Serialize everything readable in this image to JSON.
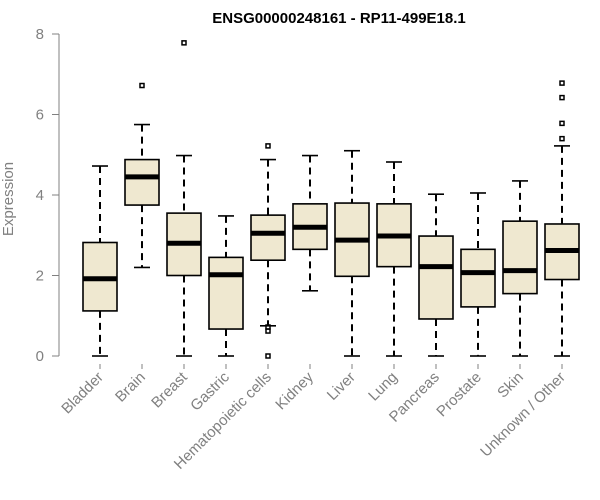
{
  "chart_data": {
    "type": "boxplot",
    "title": "ENSG00000248161 - RP11-499E18.1",
    "xlabel": "",
    "ylabel": "Expression",
    "ylim": [
      0,
      8
    ],
    "yticks": [
      0,
      2,
      4,
      6,
      8
    ],
    "box_color": "#efe8d0",
    "categories": [
      "Bladder",
      "Brain",
      "Breast",
      "Gastric",
      "Hematopoietic cells",
      "Kidney",
      "Liver",
      "Lung",
      "Pancreas",
      "Prostate",
      "Skin",
      "Unknown / Other"
    ],
    "boxes": [
      {
        "min": 0.0,
        "q1": 1.12,
        "median": 1.92,
        "q3": 2.82,
        "max": 4.72,
        "outliers": []
      },
      {
        "min": 2.2,
        "q1": 3.75,
        "median": 4.45,
        "q3": 4.88,
        "max": 5.75,
        "outliers": [
          6.72
        ]
      },
      {
        "min": 0.0,
        "q1": 2.0,
        "median": 2.8,
        "q3": 3.55,
        "max": 4.98,
        "outliers": [
          7.78
        ]
      },
      {
        "min": 0.0,
        "q1": 0.67,
        "median": 2.02,
        "q3": 2.45,
        "max": 3.48,
        "outliers": []
      },
      {
        "min": 0.75,
        "q1": 2.38,
        "median": 3.05,
        "q3": 3.5,
        "max": 4.88,
        "outliers": [
          5.22,
          0.72,
          0.62,
          0.0
        ]
      },
      {
        "min": 1.62,
        "q1": 2.65,
        "median": 3.2,
        "q3": 3.78,
        "max": 4.98,
        "outliers": []
      },
      {
        "min": 0.0,
        "q1": 1.98,
        "median": 2.88,
        "q3": 3.8,
        "max": 5.1,
        "outliers": []
      },
      {
        "min": 0.0,
        "q1": 2.22,
        "median": 2.98,
        "q3": 3.78,
        "max": 4.82,
        "outliers": []
      },
      {
        "min": 0.0,
        "q1": 0.92,
        "median": 2.22,
        "q3": 2.98,
        "max": 4.02,
        "outliers": []
      },
      {
        "min": 0.0,
        "q1": 1.22,
        "median": 2.07,
        "q3": 2.65,
        "max": 4.05,
        "outliers": []
      },
      {
        "min": 0.0,
        "q1": 1.55,
        "median": 2.12,
        "q3": 3.35,
        "max": 4.35,
        "outliers": []
      },
      {
        "min": 0.0,
        "q1": 1.9,
        "median": 2.62,
        "q3": 3.28,
        "max": 5.22,
        "outliers": [
          5.4,
          5.78,
          6.42,
          6.78
        ]
      }
    ]
  }
}
